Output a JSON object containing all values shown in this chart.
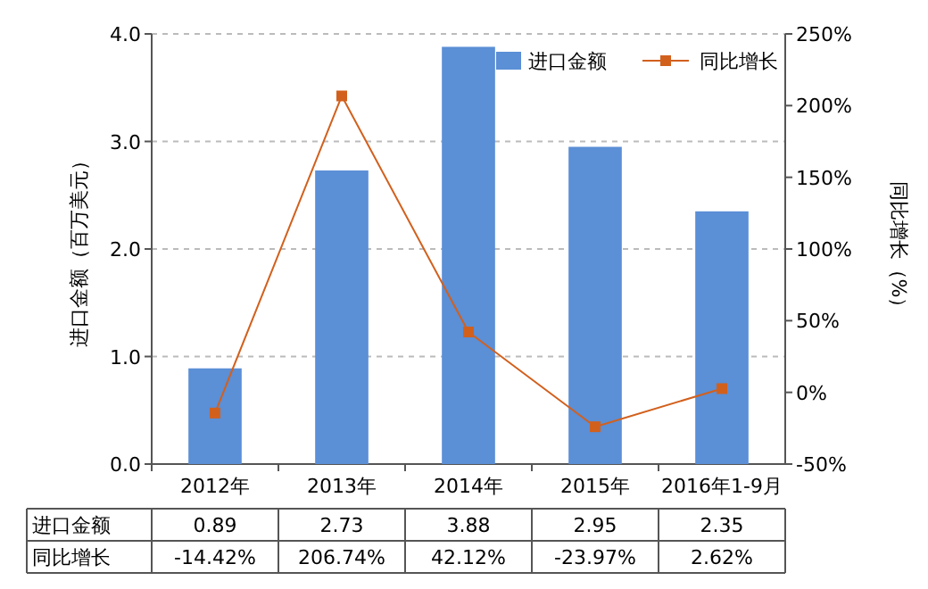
{
  "chart_data": {
    "type": "bar",
    "ylabel": "进口金额（百万美元）",
    "y2label": "同比增长（%）",
    "categories": [
      "2012年",
      "2013年",
      "2014年",
      "2015年",
      "2016年1-9月"
    ],
    "series": [
      {
        "name": "进口金额",
        "color": "#5b8fd6",
        "values": [
          0.89,
          2.73,
          3.88,
          2.95,
          2.35
        ],
        "value_labels": [
          "0.89",
          "2.73",
          "3.88",
          "2.95",
          "2.35"
        ]
      },
      {
        "name": "同比增长",
        "type": "line",
        "axis": "y2",
        "color": "#d2601d",
        "values": [
          -14.42,
          206.74,
          42.12,
          -23.97,
          2.62
        ],
        "value_labels": [
          "-14.42%",
          "206.74%",
          "42.12%",
          "-23.97%",
          "2.62%"
        ]
      }
    ],
    "ylim": [
      0,
      4
    ],
    "yticks": [
      {
        "value": 0,
        "label": "0.0"
      },
      {
        "value": 1,
        "label": "1.0"
      },
      {
        "value": 2,
        "label": "2.0"
      },
      {
        "value": 3,
        "label": "3.0"
      },
      {
        "value": 4,
        "label": "4.0"
      }
    ],
    "y2lim": [
      -50,
      250
    ],
    "y2ticks": [
      {
        "value": -50,
        "label": "-50%"
      },
      {
        "value": 0,
        "label": "0%"
      },
      {
        "value": 50,
        "label": "50%"
      },
      {
        "value": 100,
        "label": "100%"
      },
      {
        "value": 150,
        "label": "150%"
      },
      {
        "value": 200,
        "label": "200%"
      },
      {
        "value": 250,
        "label": "250%"
      }
    ],
    "grid": "y",
    "legend": "top right",
    "marker": "square",
    "data_labels": true
  }
}
